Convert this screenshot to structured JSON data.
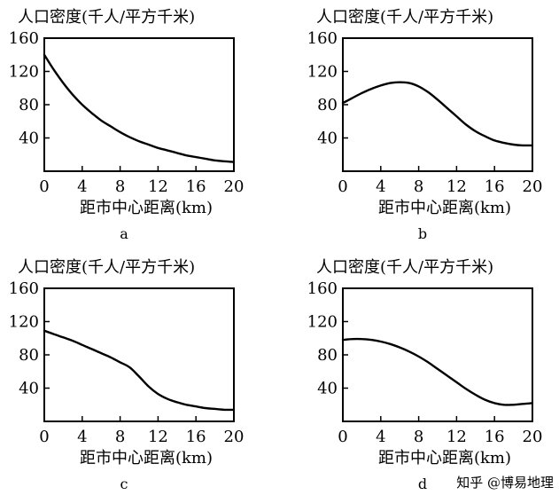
{
  "chart_data": [
    {
      "type": "line",
      "panel_label": "a",
      "ylabel": "人口密度(千人/平方千米)",
      "xlabel": "距市中心距离(km)",
      "xlim": [
        0,
        20
      ],
      "ylim": [
        0,
        160
      ],
      "x_ticks": [
        0,
        4,
        8,
        12,
        16,
        20
      ],
      "y_ticks": [
        40,
        80,
        120,
        160
      ],
      "series": [
        {
          "x": [
            0,
            1,
            2,
            3,
            4,
            5,
            6,
            7,
            8,
            9,
            10,
            11,
            12,
            13,
            14,
            15,
            16,
            17,
            18,
            19,
            20
          ],
          "values": [
            140,
            122,
            106,
            92,
            80,
            70,
            61,
            54,
            47,
            41,
            36,
            32,
            28,
            25,
            22,
            19,
            17,
            15,
            13,
            12,
            11
          ]
        }
      ]
    },
    {
      "type": "line",
      "panel_label": "b",
      "ylabel": "人口密度(千人/平方千米)",
      "xlabel": "距市中心距离(km)",
      "xlim": [
        0,
        20
      ],
      "ylim": [
        0,
        160
      ],
      "x_ticks": [
        0,
        4,
        8,
        12,
        16,
        20
      ],
      "y_ticks": [
        40,
        80,
        120,
        160
      ],
      "series": [
        {
          "x": [
            0,
            1,
            2,
            3,
            4,
            5,
            6,
            7,
            8,
            9,
            10,
            11,
            12,
            13,
            14,
            15,
            16,
            17,
            18,
            19,
            20
          ],
          "values": [
            82,
            88,
            94,
            99,
            103,
            106,
            107,
            106,
            102,
            95,
            86,
            76,
            66,
            56,
            48,
            42,
            37,
            34,
            32,
            31,
            31
          ]
        }
      ]
    },
    {
      "type": "line",
      "panel_label": "c",
      "ylabel": "人口密度(千人/平方千米)",
      "xlabel": "距市中心距离(km)",
      "xlim": [
        0,
        20
      ],
      "ylim": [
        0,
        160
      ],
      "x_ticks": [
        0,
        4,
        8,
        12,
        16,
        20
      ],
      "y_ticks": [
        40,
        80,
        120,
        160
      ],
      "series": [
        {
          "x": [
            0,
            1,
            2,
            3,
            4,
            5,
            6,
            7,
            8,
            9,
            10,
            11,
            12,
            13,
            14,
            15,
            16,
            17,
            18,
            19,
            20
          ],
          "values": [
            109,
            105,
            101,
            97,
            92,
            87,
            82,
            77,
            71,
            65,
            54,
            42,
            33,
            27,
            23,
            20,
            18,
            16,
            15,
            14,
            14
          ]
        }
      ]
    },
    {
      "type": "line",
      "panel_label": "d",
      "ylabel": "人口密度(千人/平方千米)",
      "xlabel": "距市中心距离(km)",
      "xlim": [
        0,
        20
      ],
      "ylim": [
        0,
        160
      ],
      "x_ticks": [
        0,
        4,
        8,
        12,
        16,
        20
      ],
      "y_ticks": [
        40,
        80,
        120,
        160
      ],
      "series": [
        {
          "x": [
            0,
            1,
            2,
            3,
            4,
            5,
            6,
            7,
            8,
            9,
            10,
            11,
            12,
            13,
            14,
            15,
            16,
            17,
            18,
            19,
            20
          ],
          "values": [
            98,
            99,
            99,
            98,
            96,
            93,
            89,
            84,
            78,
            71,
            63,
            55,
            47,
            39,
            32,
            26,
            22,
            20,
            20,
            21,
            22
          ]
        }
      ]
    }
  ],
  "watermark": "知乎 @博易地理"
}
